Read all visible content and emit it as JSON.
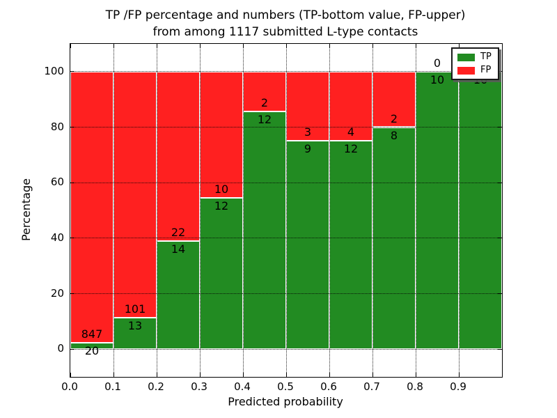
{
  "chart_data": {
    "type": "bar",
    "stacked_percentage": true,
    "title_line1": "TP /FP percentage and numbers (TP-bottom value, FP-upper)",
    "title_line2": "from among 1117 submitted L-type contacts",
    "total_submitted": 1117,
    "xlabel": "Predicted probability",
    "ylabel": "Percentage",
    "x_tick_labels": [
      "0.0",
      "0.1",
      "0.2",
      "0.3",
      "0.4",
      "0.5",
      "0.6",
      "0.7",
      "0.8",
      "0.9"
    ],
    "y_ticks": [
      0,
      20,
      40,
      60,
      80,
      100
    ],
    "xlim": [
      0.0,
      1.0
    ],
    "ylim": [
      -10,
      110
    ],
    "bin_width": 0.1,
    "categories": [
      "0.0-0.1",
      "0.1-0.2",
      "0.2-0.3",
      "0.3-0.4",
      "0.4-0.5",
      "0.5-0.6",
      "0.6-0.7",
      "0.7-0.8",
      "0.8-0.9",
      "0.9-1.0"
    ],
    "series": [
      {
        "name": "TP",
        "color": "#228B22",
        "counts": [
          20,
          13,
          14,
          12,
          12,
          9,
          12,
          8,
          10,
          16
        ]
      },
      {
        "name": "FP",
        "color": "#FF2020",
        "counts": [
          847,
          101,
          22,
          10,
          2,
          3,
          4,
          2,
          0,
          0
        ]
      }
    ],
    "grid": true,
    "legend": {
      "position": "upper right",
      "entries": [
        {
          "label": "TP",
          "color": "#228B22"
        },
        {
          "label": "FP",
          "color": "#FF2020"
        }
      ]
    }
  }
}
